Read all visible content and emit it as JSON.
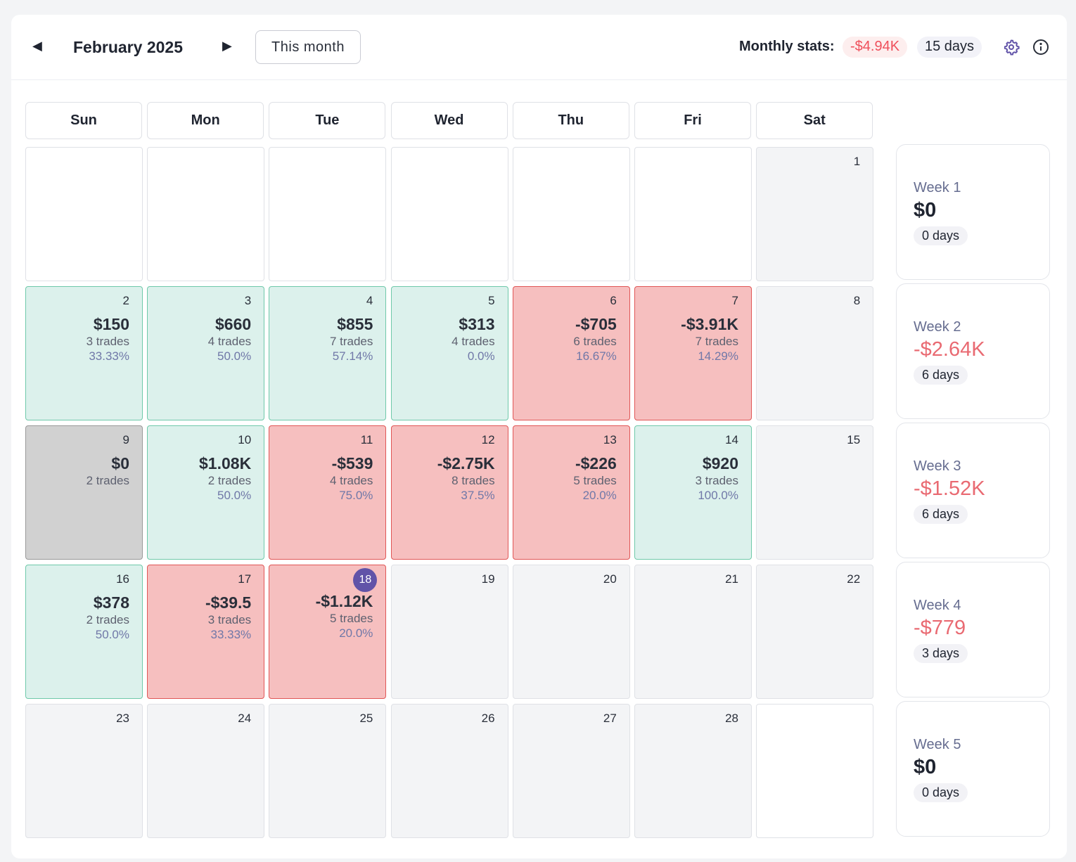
{
  "header": {
    "title": "February 2025",
    "this_month": "This month",
    "stats_label": "Monthly stats:",
    "monthly_pnl": "-$4.94K",
    "monthly_days": "15 days"
  },
  "colors": {
    "win": "#dcf1ec",
    "loss": "#f6bfbf",
    "accent": "#6153a8"
  },
  "weekdays": [
    "Sun",
    "Mon",
    "Tue",
    "Wed",
    "Thu",
    "Fri",
    "Sat"
  ],
  "rows": [
    [
      {
        "type": "empty"
      },
      {
        "type": "empty"
      },
      {
        "type": "empty"
      },
      {
        "type": "empty"
      },
      {
        "type": "empty"
      },
      {
        "type": "empty"
      },
      {
        "type": "future",
        "day": "1"
      }
    ],
    [
      {
        "type": "win",
        "day": "2",
        "pnl": "$150",
        "trades": "3 trades",
        "wr": "33.33%"
      },
      {
        "type": "win",
        "day": "3",
        "pnl": "$660",
        "trades": "4 trades",
        "wr": "50.0%"
      },
      {
        "type": "win",
        "day": "4",
        "pnl": "$855",
        "trades": "7 trades",
        "wr": "57.14%"
      },
      {
        "type": "win",
        "day": "5",
        "pnl": "$313",
        "trades": "4 trades",
        "wr": "0.0%"
      },
      {
        "type": "loss",
        "day": "6",
        "pnl": "-$705",
        "trades": "6 trades",
        "wr": "16.67%"
      },
      {
        "type": "loss",
        "day": "7",
        "pnl": "-$3.91K",
        "trades": "7 trades",
        "wr": "14.29%"
      },
      {
        "type": "future",
        "day": "8"
      }
    ],
    [
      {
        "type": "neutral",
        "day": "9",
        "pnl": "$0",
        "trades": "2 trades"
      },
      {
        "type": "win",
        "day": "10",
        "pnl": "$1.08K",
        "trades": "2 trades",
        "wr": "50.0%"
      },
      {
        "type": "loss",
        "day": "11",
        "pnl": "-$539",
        "trades": "4 trades",
        "wr": "75.0%"
      },
      {
        "type": "loss",
        "day": "12",
        "pnl": "-$2.75K",
        "trades": "8 trades",
        "wr": "37.5%"
      },
      {
        "type": "loss",
        "day": "13",
        "pnl": "-$226",
        "trades": "5 trades",
        "wr": "20.0%"
      },
      {
        "type": "win",
        "day": "14",
        "pnl": "$920",
        "trades": "3 trades",
        "wr": "100.0%"
      },
      {
        "type": "future",
        "day": "15"
      }
    ],
    [
      {
        "type": "win",
        "day": "16",
        "pnl": "$378",
        "trades": "2 trades",
        "wr": "50.0%"
      },
      {
        "type": "loss",
        "day": "17",
        "pnl": "-$39.5",
        "trades": "3 trades",
        "wr": "33.33%"
      },
      {
        "type": "loss",
        "day": "18",
        "today": true,
        "pnl": "-$1.12K",
        "trades": "5 trades",
        "wr": "20.0%"
      },
      {
        "type": "future",
        "day": "19"
      },
      {
        "type": "future",
        "day": "20"
      },
      {
        "type": "future",
        "day": "21"
      },
      {
        "type": "future",
        "day": "22"
      }
    ],
    [
      {
        "type": "future",
        "day": "23"
      },
      {
        "type": "future",
        "day": "24"
      },
      {
        "type": "future",
        "day": "25"
      },
      {
        "type": "future",
        "day": "26"
      },
      {
        "type": "future",
        "day": "27"
      },
      {
        "type": "future",
        "day": "28"
      },
      {
        "type": "empty"
      }
    ]
  ],
  "weeks": [
    {
      "label": "Week 1",
      "pnl": "$0",
      "days": "0 days",
      "negative": false
    },
    {
      "label": "Week 2",
      "pnl": "-$2.64K",
      "days": "6 days",
      "negative": true
    },
    {
      "label": "Week 3",
      "pnl": "-$1.52K",
      "days": "6 days",
      "negative": true
    },
    {
      "label": "Week 4",
      "pnl": "-$779",
      "days": "3 days",
      "negative": true
    },
    {
      "label": "Week 5",
      "pnl": "$0",
      "days": "0 days",
      "negative": false
    }
  ]
}
